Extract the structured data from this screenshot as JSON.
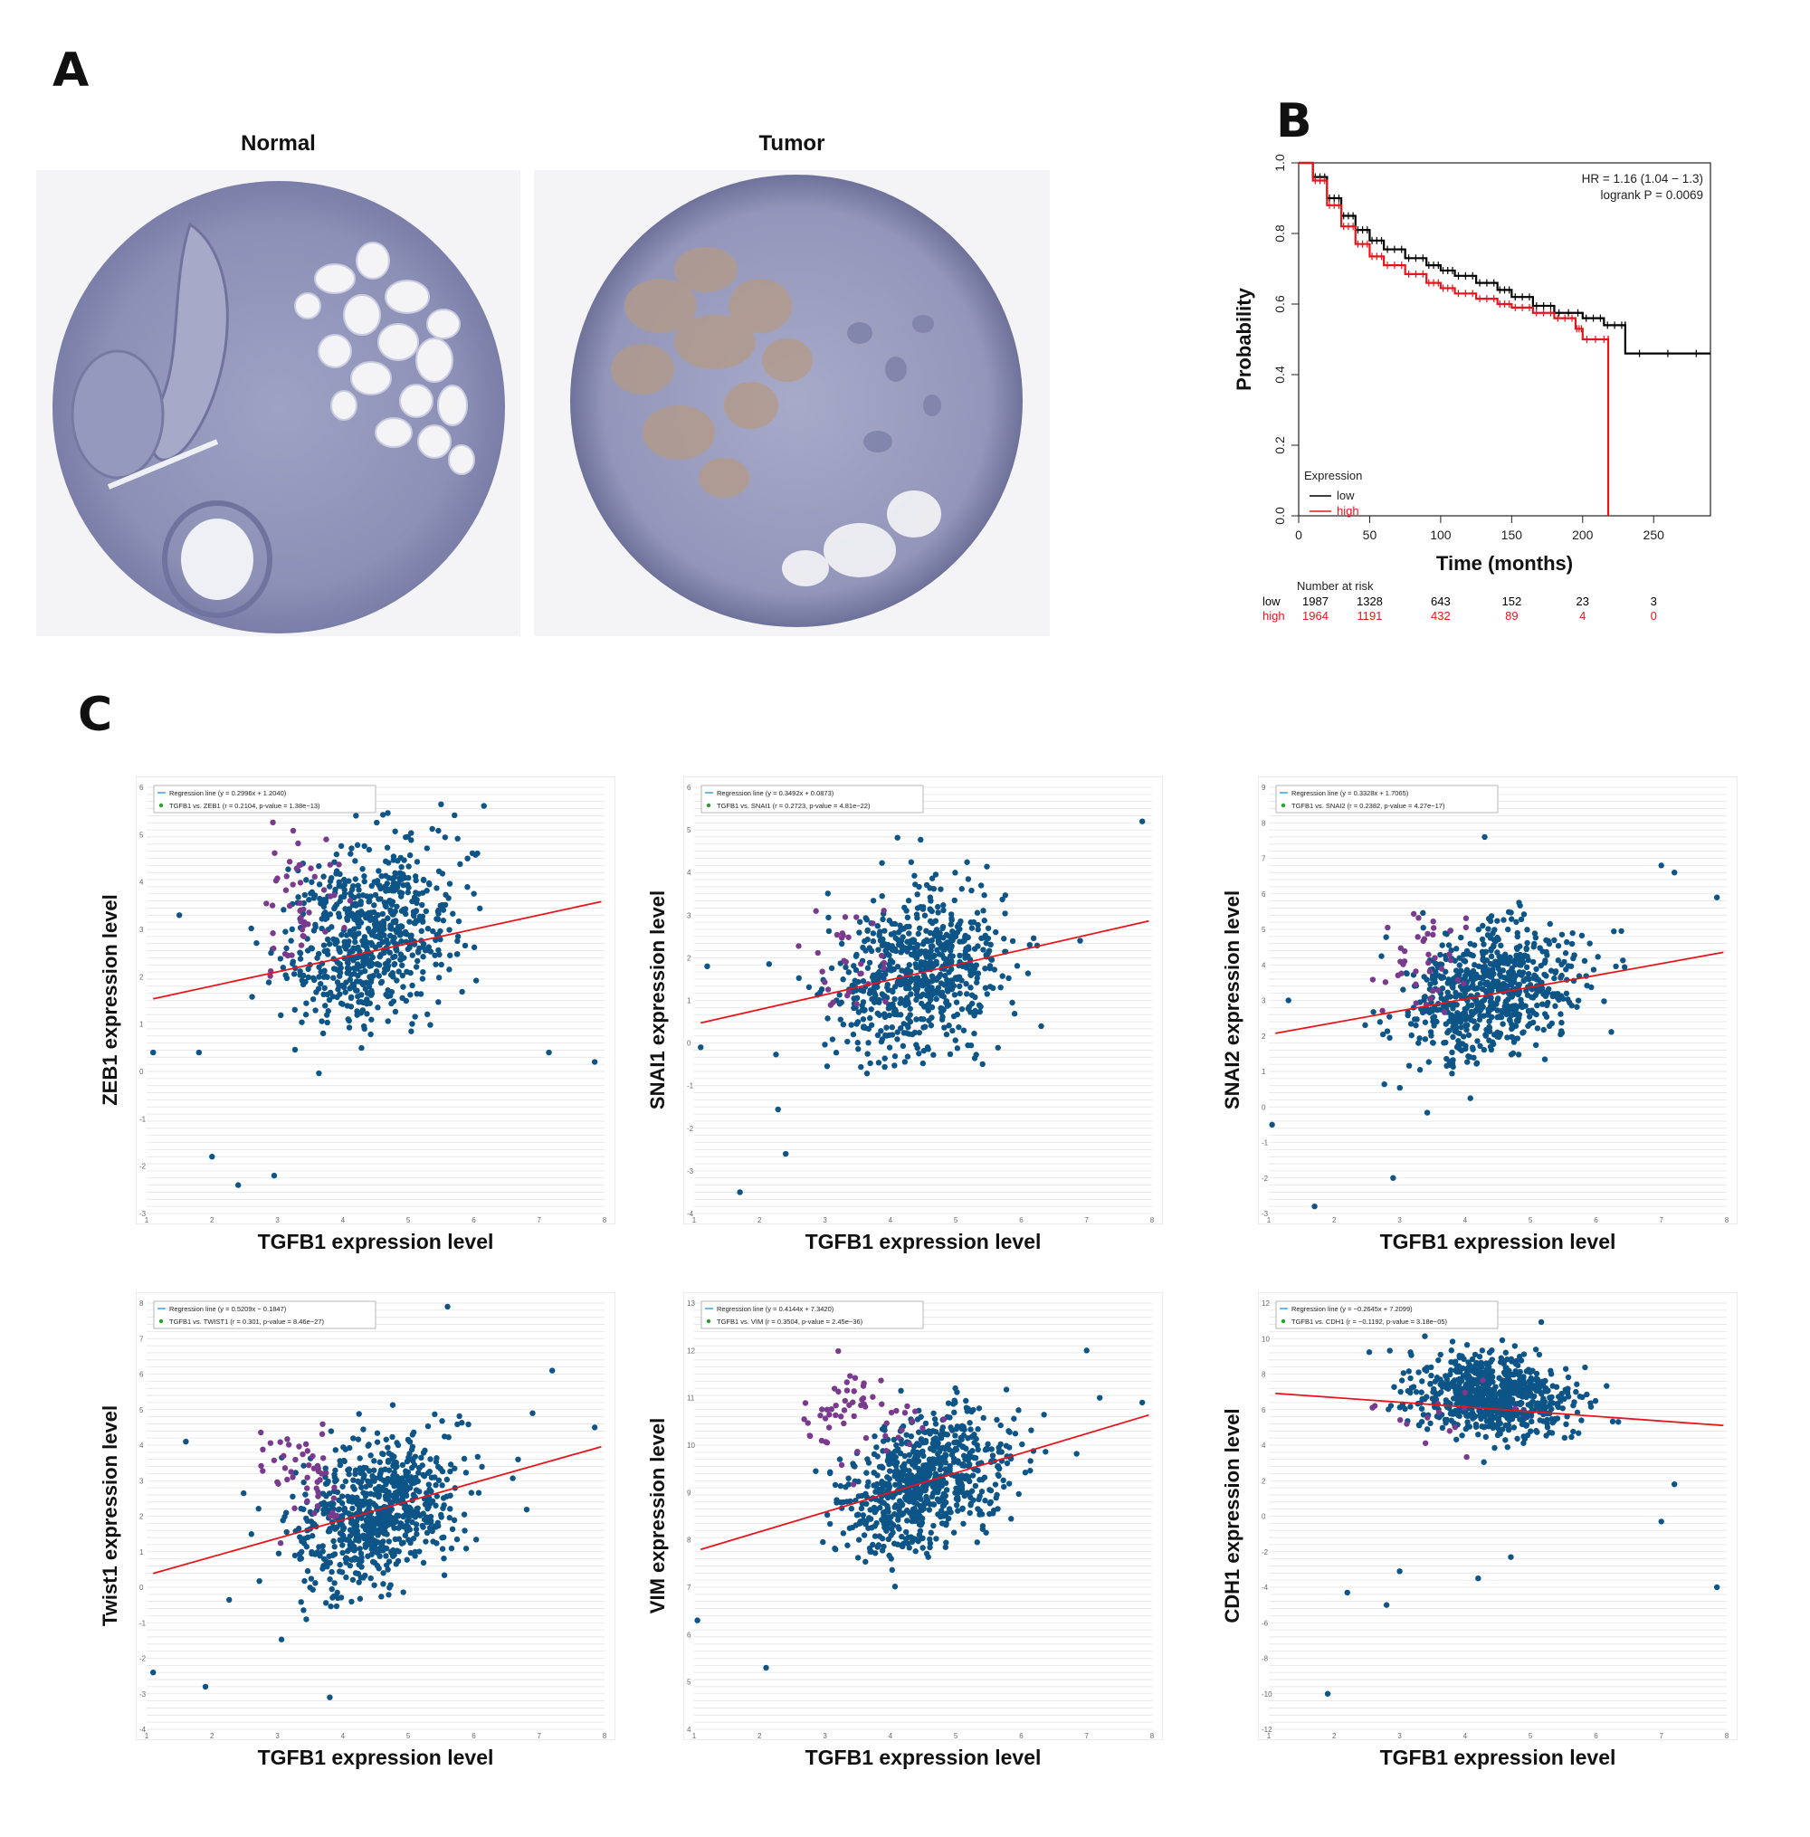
{
  "panels": {
    "a_label": "A",
    "b_label": "B",
    "c_label": "C"
  },
  "ihc": {
    "normal_title": "Normal",
    "tumor_title": "Tumor"
  },
  "survival": {
    "hr_text": "HR = 1.16 (1.04 − 1.3)",
    "logrank_text": "logrank P = 0.0069",
    "legend_title": "Expression",
    "number_at_risk_title": "Number at risk",
    "colors": {
      "low": "#000000",
      "high": "#e8141b"
    }
  },
  "chart_data": [
    {
      "id": "survival",
      "type": "line",
      "title": "",
      "xlabel": "Time (months)",
      "ylabel": "Probability",
      "xlim": [
        0,
        290
      ],
      "ylim": [
        0,
        1.0
      ],
      "x_ticks": [
        0,
        50,
        100,
        150,
        200,
        250
      ],
      "y_ticks": [
        0.0,
        0.2,
        0.4,
        0.6,
        0.8,
        1.0
      ],
      "legend_position": "bottom-left",
      "series": [
        {
          "name": "low",
          "color": "#000000",
          "points": [
            [
              0,
              1.0
            ],
            [
              10,
              0.96
            ],
            [
              20,
              0.9
            ],
            [
              30,
              0.85
            ],
            [
              40,
              0.81
            ],
            [
              50,
              0.78
            ],
            [
              60,
              0.755
            ],
            [
              75,
              0.73
            ],
            [
              90,
              0.71
            ],
            [
              100,
              0.695
            ],
            [
              110,
              0.68
            ],
            [
              125,
              0.66
            ],
            [
              140,
              0.64
            ],
            [
              150,
              0.62
            ],
            [
              165,
              0.595
            ],
            [
              180,
              0.575
            ],
            [
              200,
              0.56
            ],
            [
              215,
              0.54
            ],
            [
              230,
              0.54
            ],
            [
              230,
              0.46
            ],
            [
              290,
              0.46
            ]
          ]
        },
        {
          "name": "high",
          "color": "#e8141b",
          "points": [
            [
              0,
              1.0
            ],
            [
              10,
              0.95
            ],
            [
              20,
              0.88
            ],
            [
              30,
              0.82
            ],
            [
              40,
              0.77
            ],
            [
              50,
              0.735
            ],
            [
              60,
              0.71
            ],
            [
              75,
              0.685
            ],
            [
              90,
              0.66
            ],
            [
              100,
              0.645
            ],
            [
              110,
              0.63
            ],
            [
              125,
              0.615
            ],
            [
              140,
              0.6
            ],
            [
              150,
              0.59
            ],
            [
              165,
              0.575
            ],
            [
              180,
              0.56
            ],
            [
              195,
              0.53
            ],
            [
              200,
              0.5
            ],
            [
              218,
              0.5
            ],
            [
              218,
              0.0
            ]
          ]
        }
      ],
      "number_at_risk": {
        "times": [
          0,
          50,
          100,
          150,
          200,
          250
        ],
        "low": {
          "label": "low",
          "values": [
            1987,
            1328,
            643,
            152,
            23,
            3
          ]
        },
        "high": {
          "label": "high",
          "values": [
            1964,
            1191,
            432,
            89,
            4,
            0
          ]
        }
      }
    },
    {
      "id": "zeb1",
      "type": "scatter",
      "xlabel": "TGFB1 expression level",
      "ylabel": "ZEB1 expression level",
      "xlim": [
        1,
        8
      ],
      "ylim": [
        -3,
        6
      ],
      "legend_line1": "Regression line (y = 0.2996x + 1.2040)",
      "legend_line2": "TGFB1 vs. ZEB1 (r = 0.2104, p-value = 1.38e−13)",
      "regression": {
        "slope": 0.2996,
        "intercept": 1.204
      },
      "cloud": {
        "cx": 4.4,
        "cy": 2.9,
        "sx": 0.65,
        "sy": 1.0,
        "n": 700
      },
      "highlight": {
        "cx": 3.3,
        "cy": 3.6,
        "sx": 0.3,
        "sy": 0.8,
        "n": 50
      },
      "outliers": [
        [
          1.5,
          3.3
        ],
        [
          1.8,
          0.4
        ],
        [
          2.0,
          -1.8
        ],
        [
          2.4,
          -2.4
        ],
        [
          2.95,
          -2.2
        ],
        [
          4.2,
          5.4
        ],
        [
          7.15,
          0.4
        ],
        [
          7.85,
          0.2
        ],
        [
          1.1,
          0.4
        ]
      ]
    },
    {
      "id": "snai1",
      "type": "scatter",
      "xlabel": "TGFB1 expression level",
      "ylabel": "SNAI1 expression level",
      "xlim": [
        1,
        8
      ],
      "ylim": [
        -4,
        6
      ],
      "legend_line1": "Regression line (y = 0.3492x + 0.0873)",
      "legend_line2": "TGFB1 vs. SNAI1 (r = 0.2723, p-value = 4.81e−22)",
      "regression": {
        "slope": 0.3492,
        "intercept": 0.0873
      },
      "cloud": {
        "cx": 4.4,
        "cy": 1.6,
        "sx": 0.65,
        "sy": 1.0,
        "n": 700
      },
      "highlight": {
        "cx": 3.3,
        "cy": 1.8,
        "sx": 0.35,
        "sy": 0.6,
        "n": 30
      },
      "outliers": [
        [
          1.7,
          -3.5
        ],
        [
          2.4,
          -2.6
        ],
        [
          1.1,
          -0.1
        ],
        [
          7.85,
          5.2
        ],
        [
          6.9,
          2.4
        ],
        [
          1.2,
          1.8
        ]
      ]
    },
    {
      "id": "snai2",
      "type": "scatter",
      "xlabel": "TGFB1 expression level",
      "ylabel": "SNAI2 expression level",
      "xlim": [
        1,
        8
      ],
      "ylim": [
        -3,
        9
      ],
      "legend_line1": "Regression line (y = 0.3328x + 1.7065)",
      "legend_line2": "TGFB1 vs. SNAI2 (r = 0.2382, p-value = 4.27e−17)",
      "regression": {
        "slope": 0.3328,
        "intercept": 1.7065
      },
      "cloud": {
        "cx": 4.4,
        "cy": 3.3,
        "sx": 0.65,
        "sy": 1.0,
        "n": 700
      },
      "highlight": {
        "cx": 3.4,
        "cy": 4.2,
        "sx": 0.35,
        "sy": 0.8,
        "n": 40
      },
      "outliers": [
        [
          1.7,
          -2.8
        ],
        [
          2.9,
          -2.0
        ],
        [
          4.3,
          7.6
        ],
        [
          7.0,
          6.8
        ],
        [
          7.2,
          6.6
        ],
        [
          7.85,
          5.9
        ],
        [
          1.05,
          -0.5
        ],
        [
          1.3,
          3.0
        ]
      ]
    },
    {
      "id": "twist1",
      "type": "scatter",
      "xlabel": "TGFB1 expression level",
      "ylabel": "Twist1 expression level",
      "xlim": [
        1,
        8
      ],
      "ylim": [
        -4,
        8
      ],
      "legend_line1": "Regression line (y = 0.5209x − 0.1847)",
      "legend_line2": "TGFB1 vs. TWIST1 (r = 0.301, p-value = 8.46e−27)",
      "regression": {
        "slope": 0.5209,
        "intercept": -0.1847
      },
      "cloud": {
        "cx": 4.5,
        "cy": 2.1,
        "sx": 0.65,
        "sy": 1.1,
        "n": 750
      },
      "highlight": {
        "cx": 3.3,
        "cy": 3.3,
        "sx": 0.35,
        "sy": 0.8,
        "n": 50
      },
      "outliers": [
        [
          1.1,
          -2.4
        ],
        [
          1.9,
          -2.8
        ],
        [
          3.8,
          -3.1
        ],
        [
          5.6,
          7.9
        ],
        [
          7.2,
          6.1
        ],
        [
          6.9,
          4.9
        ],
        [
          7.85,
          4.5
        ],
        [
          1.6,
          4.1
        ]
      ]
    },
    {
      "id": "vim",
      "type": "scatter",
      "xlabel": "TGFB1 expression level",
      "ylabel": "VIM expression level",
      "xlim": [
        1,
        8
      ],
      "ylim": [
        4,
        13
      ],
      "legend_line1": "Regression line (y = 0.4144x + 7.3420)",
      "legend_line2": "TGFB1 vs. VIM (r = 0.3504, p-value = 2.45e−36)",
      "regression": {
        "slope": 0.4144,
        "intercept": 7.342
      },
      "cloud": {
        "cx": 4.5,
        "cy": 9.2,
        "sx": 0.6,
        "sy": 0.75,
        "n": 750
      },
      "highlight": {
        "cx": 3.6,
        "cy": 10.6,
        "sx": 0.45,
        "sy": 0.6,
        "n": 60
      },
      "outliers": [
        [
          1.05,
          6.3
        ],
        [
          2.1,
          5.3
        ],
        [
          7.0,
          12.0
        ],
        [
          7.2,
          11.0
        ],
        [
          7.85,
          10.9
        ]
      ]
    },
    {
      "id": "cdh1",
      "type": "scatter",
      "xlabel": "TGFB1 expression level",
      "ylabel": "CDH1 expression level",
      "xlim": [
        1,
        8
      ],
      "ylim": [
        -12,
        12
      ],
      "legend_line1": "Regression line (y = −0.2645x + 7.2099)",
      "legend_line2": "TGFB1 vs. CDH1 (r = −0.1192, p-value = 3.18e−05)",
      "regression": {
        "slope": -0.2645,
        "intercept": 7.2099
      },
      "cloud": {
        "cx": 4.4,
        "cy": 6.8,
        "sx": 0.6,
        "sy": 1.2,
        "n": 750
      },
      "highlight": {
        "cx": 3.6,
        "cy": 5.8,
        "sx": 0.5,
        "sy": 1.2,
        "n": 15
      },
      "outliers": [
        [
          1.9,
          -10.0
        ],
        [
          2.8,
          -5.0
        ],
        [
          2.2,
          -4.3
        ],
        [
          7.2,
          1.8
        ],
        [
          7.85,
          -4.0
        ],
        [
          7.0,
          -0.3
        ],
        [
          4.7,
          -2.3
        ],
        [
          3.0,
          -3.1
        ],
        [
          4.2,
          -3.5
        ]
      ]
    }
  ]
}
